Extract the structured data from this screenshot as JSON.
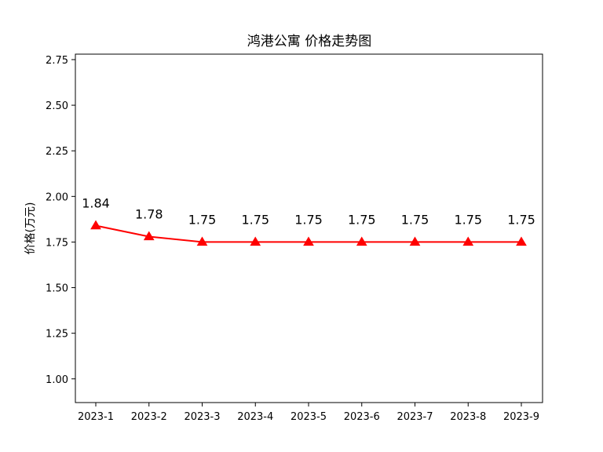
{
  "chart_data": {
    "type": "line",
    "title": "鸿港公寓 价格走势图",
    "xlabel": "",
    "ylabel": "价格(万元)",
    "categories": [
      "2023-1",
      "2023-2",
      "2023-3",
      "2023-4",
      "2023-5",
      "2023-6",
      "2023-7",
      "2023-8",
      "2023-9"
    ],
    "series": [
      {
        "values": [
          1.84,
          1.78,
          1.75,
          1.75,
          1.75,
          1.75,
          1.75,
          1.75,
          1.75
        ],
        "color": "#ff0000",
        "marker": "triangle-up"
      }
    ],
    "data_labels": [
      "1.84",
      "1.78",
      "1.75",
      "1.75",
      "1.75",
      "1.75",
      "1.75",
      "1.75",
      "1.75"
    ],
    "ylim": [
      0.87,
      2.78
    ],
    "yticks": [
      1.0,
      1.25,
      1.5,
      1.75,
      2.0,
      2.25,
      2.5,
      2.75
    ],
    "ytick_labels": [
      "1.00",
      "1.25",
      "1.50",
      "1.75",
      "2.00",
      "2.25",
      "2.50",
      "2.75"
    ],
    "grid": false,
    "legend": "none"
  }
}
